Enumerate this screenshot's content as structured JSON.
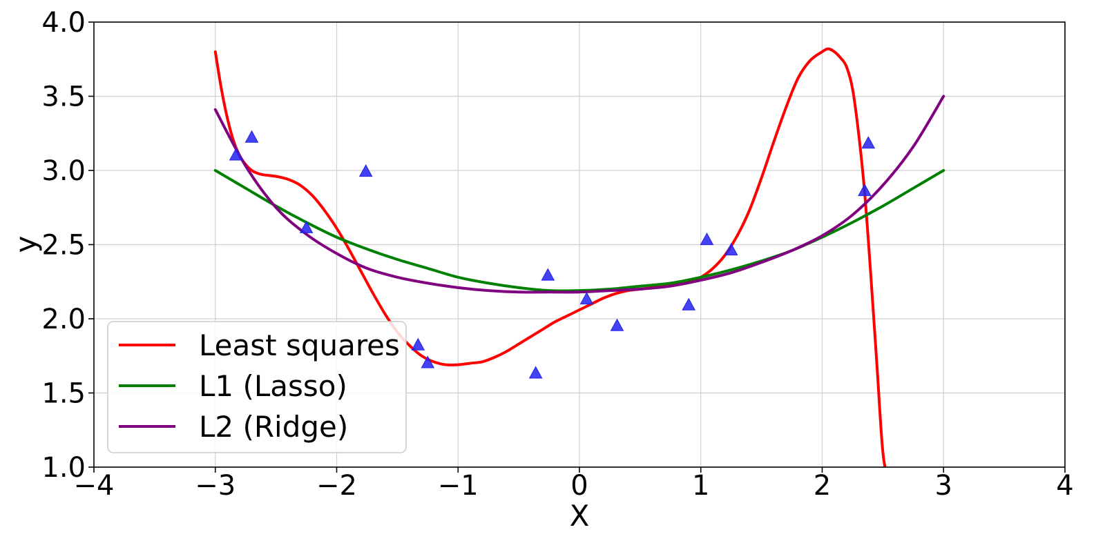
{
  "chart_data": {
    "type": "line",
    "title": "",
    "xlabel": "X",
    "ylabel": "y",
    "xlim": [
      -4,
      4
    ],
    "ylim": [
      1.0,
      4.0
    ],
    "grid": true,
    "legend_position": "lower-left",
    "xticks": [
      -4,
      -3,
      -2,
      -1,
      0,
      1,
      2,
      3,
      4
    ],
    "xtick_labels": [
      "−4",
      "−3",
      "−2",
      "−1",
      "0",
      "1",
      "2",
      "3",
      "4"
    ],
    "yticks": [
      1.0,
      1.5,
      2.0,
      2.5,
      3.0,
      3.5,
      4.0
    ],
    "ytick_labels": [
      "1.0",
      "1.5",
      "2.0",
      "2.5",
      "3.0",
      "3.5",
      "4.0"
    ],
    "scatter": {
      "marker": "triangle",
      "color": "#2222ee",
      "points": [
        [
          -2.83,
          3.1
        ],
        [
          -2.7,
          3.22
        ],
        [
          -2.25,
          2.61
        ],
        [
          -1.76,
          2.99
        ],
        [
          -1.33,
          1.82
        ],
        [
          -1.25,
          1.7
        ],
        [
          -0.36,
          1.63
        ],
        [
          -0.26,
          2.29
        ],
        [
          0.06,
          2.13
        ],
        [
          0.31,
          1.95
        ],
        [
          0.9,
          2.09
        ],
        [
          1.05,
          2.53
        ],
        [
          1.25,
          2.46
        ],
        [
          2.35,
          2.86
        ],
        [
          2.38,
          3.18
        ]
      ]
    },
    "series": [
      {
        "name": "Least squares",
        "color": "#ff0000",
        "x": [
          -3.0,
          -2.95,
          -2.9,
          -2.85,
          -2.8,
          -2.75,
          -2.7,
          -2.65,
          -2.6,
          -2.5,
          -2.4,
          -2.3,
          -2.2,
          -2.1,
          -2.0,
          -1.9,
          -1.8,
          -1.7,
          -1.6,
          -1.5,
          -1.4,
          -1.3,
          -1.2,
          -1.1,
          -1.0,
          -0.9,
          -0.8,
          -0.7,
          -0.6,
          -0.5,
          -0.4,
          -0.3,
          -0.2,
          -0.1,
          0.0,
          0.1,
          0.2,
          0.3,
          0.4,
          0.5,
          0.6,
          0.7,
          0.8,
          0.9,
          1.0,
          1.1,
          1.2,
          1.3,
          1.4,
          1.5,
          1.6,
          1.7,
          1.8,
          1.9,
          2.0,
          2.05,
          2.1,
          2.15,
          2.2,
          2.25,
          2.3,
          2.35,
          2.4,
          2.45,
          2.5,
          2.55
        ],
        "values": [
          3.8,
          3.55,
          3.35,
          3.2,
          3.1,
          3.04,
          3.0,
          2.98,
          2.97,
          2.96,
          2.94,
          2.9,
          2.83,
          2.73,
          2.61,
          2.47,
          2.32,
          2.17,
          2.03,
          1.91,
          1.82,
          1.75,
          1.71,
          1.69,
          1.69,
          1.7,
          1.71,
          1.74,
          1.78,
          1.83,
          1.88,
          1.93,
          1.98,
          2.02,
          2.06,
          2.1,
          2.14,
          2.17,
          2.19,
          2.2,
          2.21,
          2.22,
          2.23,
          2.25,
          2.28,
          2.34,
          2.43,
          2.56,
          2.73,
          2.95,
          3.19,
          3.42,
          3.62,
          3.74,
          3.8,
          3.82,
          3.8,
          3.76,
          3.7,
          3.55,
          3.25,
          2.85,
          2.3,
          1.7,
          1.1,
          0.9
        ]
      },
      {
        "name": "L1 (Lasso)",
        "color": "#008000",
        "x": [
          -3.0,
          -2.75,
          -2.5,
          -2.25,
          -2.0,
          -1.75,
          -1.5,
          -1.25,
          -1.0,
          -0.75,
          -0.5,
          -0.25,
          0.0,
          0.25,
          0.5,
          0.75,
          1.0,
          1.25,
          1.5,
          1.75,
          2.0,
          2.25,
          2.5,
          2.75,
          3.0
        ],
        "values": [
          3.0,
          2.88,
          2.76,
          2.65,
          2.55,
          2.47,
          2.4,
          2.34,
          2.28,
          2.24,
          2.21,
          2.19,
          2.19,
          2.2,
          2.22,
          2.24,
          2.28,
          2.33,
          2.39,
          2.46,
          2.55,
          2.65,
          2.76,
          2.88,
          3.0
        ]
      },
      {
        "name": "L2 (Ridge)",
        "color": "#800080",
        "x": [
          -3.0,
          -2.75,
          -2.5,
          -2.25,
          -2.0,
          -1.75,
          -1.5,
          -1.25,
          -1.0,
          -0.75,
          -0.5,
          -0.25,
          0.0,
          0.25,
          0.5,
          0.75,
          1.0,
          1.25,
          1.5,
          1.75,
          2.0,
          2.25,
          2.5,
          2.75,
          3.0
        ],
        "values": [
          3.41,
          3.03,
          2.75,
          2.57,
          2.44,
          2.34,
          2.28,
          2.24,
          2.21,
          2.19,
          2.18,
          2.18,
          2.18,
          2.19,
          2.2,
          2.22,
          2.26,
          2.31,
          2.38,
          2.46,
          2.56,
          2.7,
          2.9,
          3.16,
          3.5
        ]
      }
    ]
  }
}
